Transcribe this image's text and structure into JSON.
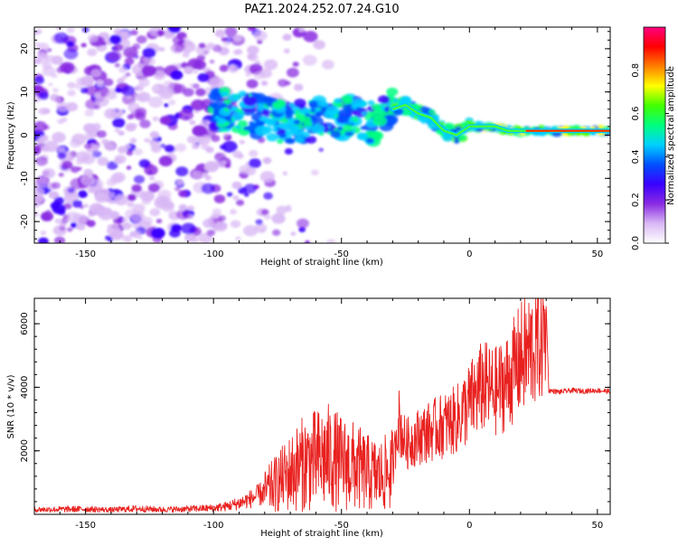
{
  "title": "PAZ1.2024.252.07.24.G10",
  "chart_data": [
    {
      "type": "heatmap",
      "xlabel": "Height of straight line (km)",
      "ylabel": "Frequency (Hz)",
      "colorbar_label": "Normalized spectral amplitude",
      "xlim": [
        -170,
        55
      ],
      "ylim": [
        -25,
        25
      ],
      "xticks": [
        -150,
        -100,
        -50,
        0,
        50
      ],
      "yticks": [
        -20,
        -10,
        0,
        10,
        20
      ],
      "colorbar_range": [
        0,
        1
      ],
      "colorbar_ticks": [
        0.0,
        0.2,
        0.4,
        0.6,
        0.8
      ],
      "colormap": [
        "#ffffff",
        "#d9b8f5",
        "#8a2be2",
        "#3a00ff",
        "#0050ff",
        "#00d0ff",
        "#00ff80",
        "#40ff00",
        "#ffff00",
        "#ff8000",
        "#ff0000",
        "#ff0080"
      ],
      "ridge": [
        {
          "x": -95,
          "y": 6
        },
        {
          "x": -85,
          "y": 5
        },
        {
          "x": -75,
          "y": 3
        },
        {
          "x": -65,
          "y": 3
        },
        {
          "x": -55,
          "y": 4
        },
        {
          "x": -45,
          "y": 4
        },
        {
          "x": -40,
          "y": 3
        },
        {
          "x": -35,
          "y": 3
        },
        {
          "x": -30,
          "y": 6
        },
        {
          "x": -25,
          "y": 7
        },
        {
          "x": -20,
          "y": 5
        },
        {
          "x": -15,
          "y": 4
        },
        {
          "x": -10,
          "y": 1
        },
        {
          "x": -5,
          "y": 0
        },
        {
          "x": 0,
          "y": 2
        },
        {
          "x": 5,
          "y": 2
        },
        {
          "x": 10,
          "y": 2
        },
        {
          "x": 15,
          "y": 1
        },
        {
          "x": 20,
          "y": 1
        },
        {
          "x": 30,
          "y": 1
        },
        {
          "x": 40,
          "y": 1
        },
        {
          "x": 55,
          "y": 1
        }
      ]
    },
    {
      "type": "line",
      "xlabel": "Height of straight line (km)",
      "ylabel": "SNR (10 * v/v)",
      "xlim": [
        -170,
        55
      ],
      "ylim": [
        0,
        6800
      ],
      "xticks": [
        -150,
        -100,
        -50,
        0,
        50
      ],
      "yticks": [
        2000,
        4000,
        6000
      ],
      "series": [
        {
          "color": "#e8211f",
          "x": [
            -170,
            -160,
            -150,
            -140,
            -130,
            -120,
            -110,
            -100,
            -95,
            -90,
            -85,
            -80,
            -75,
            -70,
            -65,
            -60,
            -55,
            -50,
            -45,
            -40,
            -35,
            -30,
            -28,
            -25,
            -20,
            -15,
            -10,
            -5,
            0,
            5,
            10,
            15,
            20,
            25,
            29,
            30,
            31,
            35,
            40,
            45,
            50,
            55
          ],
          "y": [
            150,
            160,
            170,
            140,
            180,
            150,
            170,
            200,
            250,
            350,
            500,
            700,
            1000,
            1300,
            1600,
            1700,
            1800,
            1600,
            1500,
            1300,
            1200,
            1400,
            3500,
            2500,
            2800,
            3000,
            3200,
            3400,
            4000,
            4600,
            4400,
            4800,
            5600,
            6000,
            6500,
            6600,
            3900,
            3850,
            3900,
            3880,
            3900,
            3870
          ]
        }
      ]
    }
  ]
}
